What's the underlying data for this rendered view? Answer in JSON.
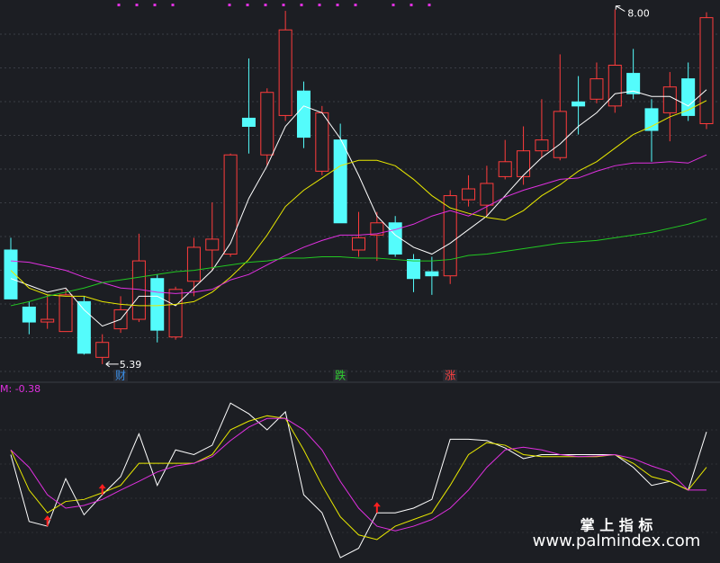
{
  "chart_data": [
    {
      "type": "candlestick",
      "ylim": [
        5.29,
        8.07
      ],
      "grid": true,
      "up_color": "#ff3c3c",
      "down_color": "#54fcfc",
      "open": [
        6.23,
        5.81,
        5.7,
        5.63,
        5.85,
        5.44,
        5.65,
        5.72,
        6.02,
        5.59,
        6.0,
        6.23,
        6.2,
        7.2,
        6.93,
        7.22,
        7.4,
        6.81,
        7.04,
        6.23,
        6.34,
        6.43,
        6.16,
        6.07,
        6.04,
        6.6,
        6.56,
        6.77,
        6.77,
        6.96,
        6.91,
        7.32,
        7.34,
        7.29,
        7.53,
        7.27,
        7.24,
        7.49,
        7.16
      ],
      "high": [
        6.32,
        5.85,
        5.9,
        5.94,
        5.89,
        5.61,
        5.89,
        6.35,
        6.05,
        5.96,
        6.32,
        6.58,
        6.94,
        7.64,
        7.42,
        7.99,
        7.47,
        7.29,
        7.16,
        6.51,
        6.51,
        6.48,
        6.2,
        6.18,
        6.67,
        6.78,
        6.85,
        7.04,
        7.14,
        7.34,
        7.67,
        7.51,
        7.61,
        8.0,
        7.71,
        7.34,
        7.54,
        7.61,
        7.98
      ],
      "low": [
        5.87,
        5.61,
        5.65,
        5.63,
        5.46,
        5.39,
        5.62,
        5.7,
        5.55,
        5.57,
        5.89,
        6.08,
        6.18,
        6.94,
        6.85,
        7.18,
        6.98,
        6.78,
        6.43,
        6.18,
        6.15,
        6.18,
        5.92,
        5.9,
        5.98,
        6.55,
        6.48,
        6.75,
        6.71,
        6.91,
        6.89,
        7.08,
        7.31,
        7.24,
        7.34,
        6.88,
        7.03,
        7.18,
        7.12
      ],
      "close": [
        5.87,
        5.7,
        5.72,
        5.9,
        5.47,
        5.55,
        5.79,
        6.15,
        5.64,
        5.94,
        6.25,
        6.31,
        6.93,
        7.14,
        7.39,
        7.85,
        7.06,
        7.24,
        6.43,
        6.32,
        6.43,
        6.2,
        6.02,
        6.04,
        6.63,
        6.68,
        6.72,
        6.88,
        6.96,
        7.04,
        7.25,
        7.29,
        7.49,
        7.59,
        7.38,
        7.11,
        7.43,
        7.22,
        7.94
      ],
      "series": [
        {
          "color": "#ffffff",
          "values": [
            6.02,
            5.97,
            5.92,
            5.95,
            5.79,
            5.67,
            5.72,
            5.89,
            5.89,
            5.82,
            5.95,
            6.08,
            6.28,
            6.61,
            6.85,
            7.14,
            7.29,
            7.24,
            7.05,
            6.78,
            6.48,
            6.34,
            6.25,
            6.2,
            6.28,
            6.38,
            6.48,
            6.63,
            6.78,
            6.91,
            7.01,
            7.14,
            7.24,
            7.38,
            7.4,
            7.36,
            7.36,
            7.29,
            7.41
          ]
        },
        {
          "color": "#e8e800",
          "values": [
            6.08,
            5.95,
            5.9,
            5.89,
            5.89,
            5.85,
            5.83,
            5.82,
            5.82,
            5.83,
            5.85,
            5.92,
            6.03,
            6.16,
            6.34,
            6.55,
            6.67,
            6.76,
            6.85,
            6.89,
            6.89,
            6.85,
            6.75,
            6.63,
            6.54,
            6.5,
            6.47,
            6.45,
            6.52,
            6.63,
            6.71,
            6.81,
            6.88,
            6.98,
            7.08,
            7.14,
            7.21,
            7.26,
            7.33
          ]
        },
        {
          "color": "#e030e0",
          "values": [
            6.15,
            6.14,
            6.11,
            6.08,
            6.03,
            5.99,
            5.95,
            5.94,
            5.92,
            5.91,
            5.92,
            5.94,
            6.01,
            6.05,
            6.12,
            6.19,
            6.25,
            6.3,
            6.34,
            6.34,
            6.35,
            6.38,
            6.42,
            6.48,
            6.52,
            6.48,
            6.55,
            6.62,
            6.67,
            6.71,
            6.75,
            6.76,
            6.81,
            6.85,
            6.87,
            6.87,
            6.88,
            6.87,
            6.93
          ]
        },
        {
          "color": "#22c822",
          "values": [
            5.82,
            5.85,
            5.89,
            5.92,
            5.95,
            5.99,
            6.01,
            6.03,
            6.05,
            6.07,
            6.08,
            6.1,
            6.12,
            6.14,
            6.15,
            6.17,
            6.17,
            6.18,
            6.18,
            6.17,
            6.17,
            6.16,
            6.15,
            6.15,
            6.16,
            6.19,
            6.2,
            6.22,
            6.24,
            6.26,
            6.28,
            6.29,
            6.3,
            6.32,
            6.34,
            6.36,
            6.39,
            6.42,
            6.46
          ]
        }
      ],
      "low_label": {
        "value": 5.39,
        "label": "5.39"
      },
      "high_label": {
        "value": 8.0,
        "label": "8.00"
      },
      "markers": [
        null,
        null,
        null,
        null,
        null,
        null,
        "财",
        null,
        null,
        null,
        null,
        null,
        null,
        null,
        null,
        null,
        null,
        null,
        "跌",
        null,
        null,
        null,
        null,
        null,
        "涨",
        null,
        null,
        null,
        null,
        null,
        null,
        null,
        null,
        null,
        null,
        null,
        null,
        null,
        null
      ],
      "marker_colors": [
        null,
        null,
        null,
        null,
        null,
        null,
        "#3a8ee6",
        null,
        null,
        null,
        null,
        null,
        null,
        null,
        null,
        null,
        null,
        null,
        "#30d030",
        null,
        null,
        null,
        null,
        null,
        "#ff4040",
        null,
        null,
        null,
        null,
        null,
        null,
        null,
        null,
        null,
        null,
        null,
        null,
        null,
        null
      ]
    },
    {
      "type": "line",
      "label": "M: -0.38",
      "label_color": "#e030e0",
      "ylim": [
        -1.47,
        1.03
      ],
      "series": [
        {
          "color": "#ffffff",
          "values": [
            0.15,
            -0.85,
            -0.92,
            -0.21,
            -0.75,
            -0.45,
            -0.18,
            0.46,
            -0.31,
            0.22,
            0.15,
            0.29,
            0.92,
            0.76,
            0.52,
            0.79,
            -0.45,
            -0.72,
            -1.39,
            -1.25,
            -0.72,
            -0.72,
            -0.65,
            -0.52,
            0.38,
            0.38,
            0.36,
            0.25,
            0.09,
            0.15,
            0.15,
            0.15,
            0.15,
            0.15,
            -0.04,
            -0.31,
            -0.25,
            -0.38,
            0.49
          ]
        },
        {
          "color": "#e8e800",
          "values": [
            0.22,
            -0.38,
            -0.72,
            -0.55,
            -0.52,
            -0.42,
            -0.31,
            0.02,
            0.02,
            0.02,
            0.02,
            0.15,
            0.52,
            0.65,
            0.73,
            0.69,
            0.22,
            -0.31,
            -0.78,
            -1.05,
            -1.12,
            -0.92,
            -0.82,
            -0.72,
            -0.31,
            0.15,
            0.33,
            0.29,
            0.15,
            0.12,
            0.12,
            0.12,
            0.12,
            0.15,
            0.02,
            -0.18,
            -0.25,
            -0.38,
            -0.04
          ]
        },
        {
          "color": "#e030e0",
          "values": [
            0.22,
            -0.04,
            -0.45,
            -0.65,
            -0.61,
            -0.52,
            -0.38,
            -0.25,
            -0.11,
            -0.02,
            0.02,
            0.12,
            0.36,
            0.56,
            0.69,
            0.69,
            0.52,
            0.22,
            -0.25,
            -0.65,
            -0.92,
            -0.99,
            -0.92,
            -0.82,
            -0.65,
            -0.38,
            -0.04,
            0.22,
            0.26,
            0.22,
            0.15,
            0.12,
            0.13,
            0.15,
            0.09,
            -0.02,
            -0.11,
            -0.38,
            -0.38
          ]
        }
      ],
      "signals": [
        false,
        false,
        true,
        false,
        false,
        true,
        false,
        false,
        false,
        false,
        false,
        false,
        false,
        false,
        false,
        false,
        false,
        false,
        false,
        false,
        true,
        false,
        false,
        false,
        false,
        false,
        false,
        false,
        false,
        false,
        false,
        false,
        false,
        false,
        false,
        false,
        false,
        false,
        false
      ],
      "signal_color": "#ff2020"
    }
  ],
  "watermark": {
    "title": "掌 上 指 标",
    "url": "www.palmindex.com"
  }
}
